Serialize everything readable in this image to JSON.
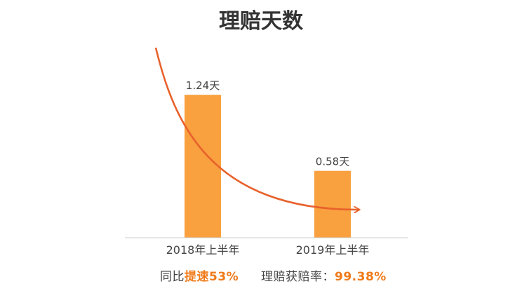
{
  "chart_data": {
    "type": "bar",
    "title": "理赔天数",
    "categories": [
      "2018年上半年",
      "2019年上半年"
    ],
    "values": [
      1.24,
      0.58
    ],
    "value_labels": [
      "1.24天",
      "0.58天"
    ],
    "unit": "天",
    "ylim": [
      0,
      1.6
    ],
    "grid": false,
    "legend": "none",
    "annotation": "decreasing-trend-arrow",
    "colors": {
      "bar": "#f9a03f",
      "arrow": "#e8612c",
      "title": "#333333",
      "axis": "#cccccc",
      "label": "#444444"
    }
  },
  "footer": {
    "left_prefix": "同比",
    "left_highlight": "提速53%",
    "right_prefix": "理赔获赔率：",
    "right_highlight": "99.38%",
    "highlight_color": "#f07a1a"
  }
}
